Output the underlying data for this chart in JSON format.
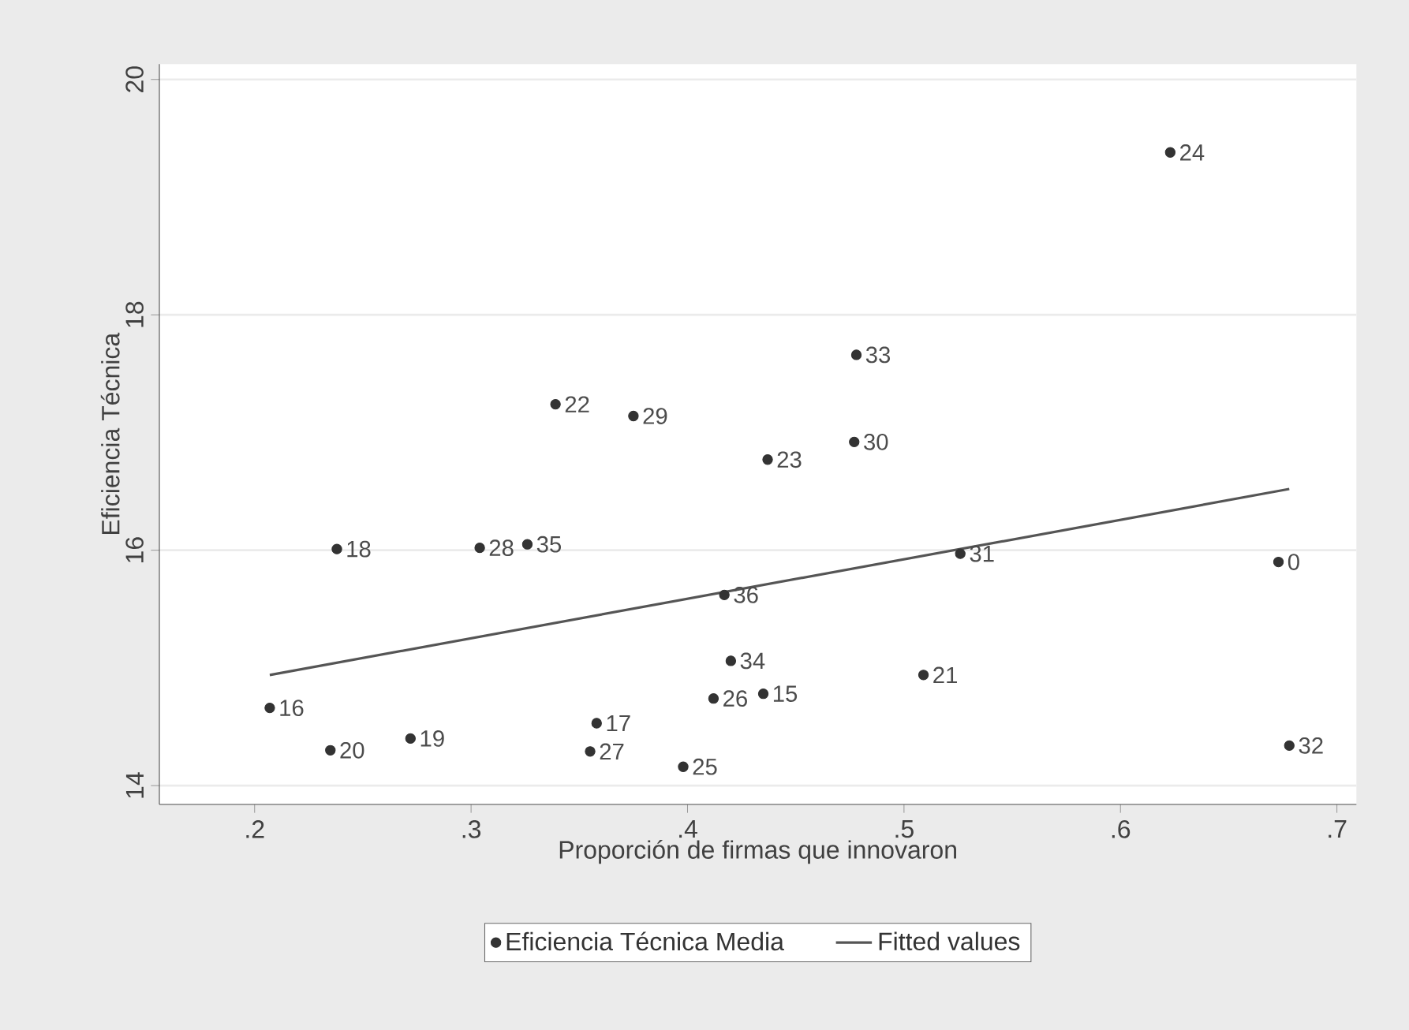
{
  "chart_data": {
    "type": "scatter",
    "xlabel": "Proporción de firmas que innovaron",
    "ylabel": "Eficiencia Técnica",
    "xlim": [
      0.156,
      0.709
    ],
    "ylim": [
      13.84,
      20.13
    ],
    "xticks": [
      {
        "value": 0.2,
        "label": ".2"
      },
      {
        "value": 0.3,
        "label": ".3"
      },
      {
        "value": 0.4,
        "label": ".4"
      },
      {
        "value": 0.5,
        "label": ".5"
      },
      {
        "value": 0.6,
        "label": ".6"
      },
      {
        "value": 0.7,
        "label": ".7"
      }
    ],
    "yticks": [
      14,
      16,
      18,
      20
    ],
    "grid": "y",
    "legend": "bottom",
    "series": [
      {
        "name": "Eficiencia Técnica Media",
        "marker": "circle",
        "color": "#333333",
        "x": [
          0.207,
          0.235,
          0.272,
          0.238,
          0.304,
          0.326,
          0.339,
          0.375,
          0.358,
          0.355,
          0.398,
          0.417,
          0.42,
          0.412,
          0.435,
          0.437,
          0.478,
          0.477,
          0.623,
          0.526,
          0.509,
          0.673,
          0.678
        ],
        "values": [
          14.66,
          14.3,
          14.4,
          16.01,
          16.02,
          16.05,
          17.24,
          17.14,
          14.53,
          14.29,
          14.16,
          15.62,
          15.06,
          14.74,
          14.78,
          16.77,
          17.66,
          16.92,
          19.38,
          15.97,
          14.94,
          15.9,
          14.34
        ]
      },
      {
        "name": "Fitted values",
        "type": "line",
        "marker": "none",
        "line_style": "solid",
        "color": "#555555",
        "x": [
          0.207,
          0.678
        ],
        "values": [
          14.94,
          16.52
        ]
      }
    ],
    "annotations": [
      {
        "text": "16",
        "x": 0.207,
        "y": 14.66
      },
      {
        "text": "20",
        "x": 0.235,
        "y": 14.3
      },
      {
        "text": "19",
        "x": 0.272,
        "y": 14.4
      },
      {
        "text": "18",
        "x": 0.238,
        "y": 16.01
      },
      {
        "text": "28",
        "x": 0.304,
        "y": 16.02
      },
      {
        "text": "35",
        "x": 0.326,
        "y": 16.05
      },
      {
        "text": "22",
        "x": 0.339,
        "y": 17.24
      },
      {
        "text": "29",
        "x": 0.375,
        "y": 17.14
      },
      {
        "text": "17",
        "x": 0.358,
        "y": 14.53
      },
      {
        "text": "27",
        "x": 0.355,
        "y": 14.29
      },
      {
        "text": "25",
        "x": 0.398,
        "y": 14.16
      },
      {
        "text": "36",
        "x": 0.417,
        "y": 15.62
      },
      {
        "text": "34",
        "x": 0.42,
        "y": 15.06
      },
      {
        "text": "26",
        "x": 0.412,
        "y": 14.74
      },
      {
        "text": "15",
        "x": 0.435,
        "y": 14.78
      },
      {
        "text": "23",
        "x": 0.437,
        "y": 16.77
      },
      {
        "text": "33",
        "x": 0.478,
        "y": 17.66
      },
      {
        "text": "30",
        "x": 0.477,
        "y": 16.92
      },
      {
        "text": "24",
        "x": 0.623,
        "y": 19.38
      },
      {
        "text": "31",
        "x": 0.526,
        "y": 15.97
      },
      {
        "text": "21",
        "x": 0.509,
        "y": 14.94
      },
      {
        "text": "0",
        "x": 0.673,
        "y": 15.9
      },
      {
        "text": "32",
        "x": 0.678,
        "y": 14.34
      }
    ]
  }
}
